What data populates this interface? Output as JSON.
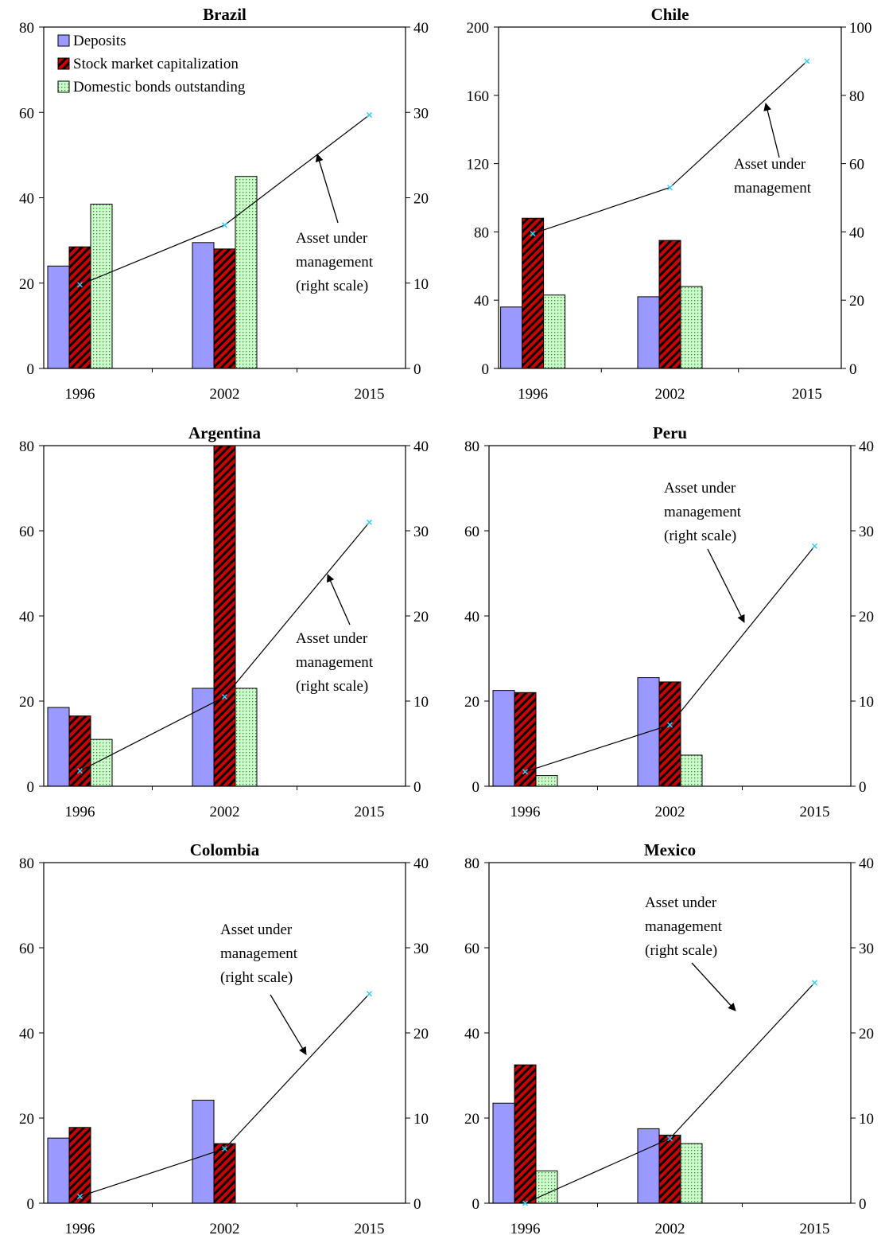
{
  "legend": {
    "items": [
      {
        "label": "Deposits",
        "color": "#9999ff",
        "pattern": "solid"
      },
      {
        "label": "Stock market capitalization",
        "color": "#cc0000",
        "pattern": "hatch"
      },
      {
        "label": "Domestic bonds outstanding",
        "color": "#ccffcc",
        "pattern": "dots"
      }
    ]
  },
  "line_color": "#000000",
  "marker_color": "#33ccff",
  "chart_data": [
    {
      "type": "bar",
      "title": "Brazil",
      "categories": [
        "1996",
        "2002",
        "2015"
      ],
      "ylim_left": [
        0,
        80
      ],
      "yticks_left": [
        0,
        20,
        40,
        60,
        80
      ],
      "ylim_right": [
        0,
        40
      ],
      "yticks_right": [
        0,
        10,
        20,
        30,
        40
      ],
      "series": [
        {
          "name": "Deposits",
          "values": [
            24,
            29.5,
            null
          ]
        },
        {
          "name": "Stock market capitalization",
          "values": [
            28.5,
            28,
            null
          ]
        },
        {
          "name": "Domestic bonds outstanding",
          "values": [
            38.5,
            45,
            null
          ]
        }
      ],
      "line": {
        "name": "Asset under management",
        "axis": "right",
        "values": [
          9.8,
          16.8,
          29.7
        ]
      },
      "annotation": {
        "lines": [
          "Asset under",
          "management",
          "(right scale)"
        ]
      },
      "show_legend": true
    },
    {
      "type": "bar",
      "title": "Chile",
      "categories": [
        "1996",
        "2002",
        "2015"
      ],
      "ylim_left": [
        0,
        200
      ],
      "yticks_left": [
        0,
        40,
        80,
        120,
        160,
        200
      ],
      "ylim_right": [
        0,
        100
      ],
      "yticks_right": [
        0,
        20,
        40,
        60,
        80,
        100
      ],
      "series": [
        {
          "name": "Deposits",
          "values": [
            36,
            42,
            null
          ]
        },
        {
          "name": "Stock market capitalization",
          "values": [
            88,
            75,
            null
          ]
        },
        {
          "name": "Domestic bonds outstanding",
          "values": [
            43,
            48,
            null
          ]
        }
      ],
      "line": {
        "name": "Asset under management",
        "axis": "right",
        "values": [
          39.5,
          53,
          90
        ]
      },
      "annotation": {
        "lines": [
          "Asset under",
          "management"
        ]
      },
      "show_legend": false
    },
    {
      "type": "bar",
      "title": "Argentina",
      "categories": [
        "1996",
        "2002",
        "2015"
      ],
      "ylim_left": [
        0,
        80
      ],
      "yticks_left": [
        0,
        20,
        40,
        60,
        80
      ],
      "ylim_right": [
        0,
        40
      ],
      "yticks_right": [
        0,
        10,
        20,
        30,
        40
      ],
      "series": [
        {
          "name": "Deposits",
          "values": [
            18.5,
            23,
            null
          ]
        },
        {
          "name": "Stock market capitalization",
          "values": [
            16.5,
            80,
            null
          ]
        },
        {
          "name": "Domestic bonds outstanding",
          "values": [
            11,
            23,
            null
          ]
        }
      ],
      "line": {
        "name": "Asset under management",
        "axis": "right",
        "values": [
          1.8,
          10.5,
          31
        ]
      },
      "annotation": {
        "lines": [
          "Asset under",
          "management",
          "(right scale)"
        ]
      },
      "show_legend": false
    },
    {
      "type": "bar",
      "title": "Peru",
      "categories": [
        "1996",
        "2002",
        "2015"
      ],
      "ylim_left": [
        0,
        80
      ],
      "yticks_left": [
        0,
        20,
        40,
        60,
        80
      ],
      "ylim_right": [
        0,
        40
      ],
      "yticks_right": [
        0,
        10,
        20,
        30,
        40
      ],
      "series": [
        {
          "name": "Deposits",
          "values": [
            22.5,
            25.5,
            null
          ]
        },
        {
          "name": "Stock market capitalization",
          "values": [
            22,
            24.5,
            null
          ]
        },
        {
          "name": "Domestic bonds outstanding",
          "values": [
            2.5,
            7.3,
            null
          ]
        }
      ],
      "line": {
        "name": "Asset under management",
        "axis": "right",
        "values": [
          1.7,
          7.2,
          28.2
        ]
      },
      "annotation": {
        "lines": [
          "Asset under",
          "management",
          "(right scale)"
        ]
      },
      "show_legend": false
    },
    {
      "type": "bar",
      "title": "Colombia",
      "categories": [
        "1996",
        "2002",
        "2015"
      ],
      "ylim_left": [
        0,
        80
      ],
      "yticks_left": [
        0,
        20,
        40,
        60,
        80
      ],
      "ylim_right": [
        0,
        40
      ],
      "yticks_right": [
        0,
        10,
        20,
        30,
        40
      ],
      "series": [
        {
          "name": "Deposits",
          "values": [
            15.3,
            24.2,
            null
          ]
        },
        {
          "name": "Stock market capitalization",
          "values": [
            17.8,
            14,
            null
          ]
        },
        {
          "name": "Domestic bonds outstanding",
          "values": [
            null,
            null,
            null
          ]
        }
      ],
      "line": {
        "name": "Asset under management",
        "axis": "right",
        "values": [
          0.8,
          6.4,
          24.6
        ]
      },
      "annotation": {
        "lines": [
          "Asset under",
          "management",
          "(right scale)"
        ]
      },
      "show_legend": false
    },
    {
      "type": "bar",
      "title": "Mexico",
      "categories": [
        "1996",
        "2002",
        "2015"
      ],
      "ylim_left": [
        0,
        80
      ],
      "yticks_left": [
        0,
        20,
        40,
        60,
        80
      ],
      "ylim_right": [
        0,
        40
      ],
      "yticks_right": [
        0,
        10,
        20,
        30,
        40
      ],
      "series": [
        {
          "name": "Deposits",
          "values": [
            23.5,
            17.5,
            null
          ]
        },
        {
          "name": "Stock market capitalization",
          "values": [
            32.5,
            16,
            null
          ]
        },
        {
          "name": "Domestic bonds outstanding",
          "values": [
            7.6,
            14,
            null
          ]
        }
      ],
      "line": {
        "name": "Asset under management",
        "axis": "right",
        "values": [
          0,
          7.6,
          25.9
        ]
      },
      "annotation": {
        "lines": [
          "Asset under",
          "management",
          "(right scale)"
        ]
      },
      "show_legend": false
    }
  ]
}
